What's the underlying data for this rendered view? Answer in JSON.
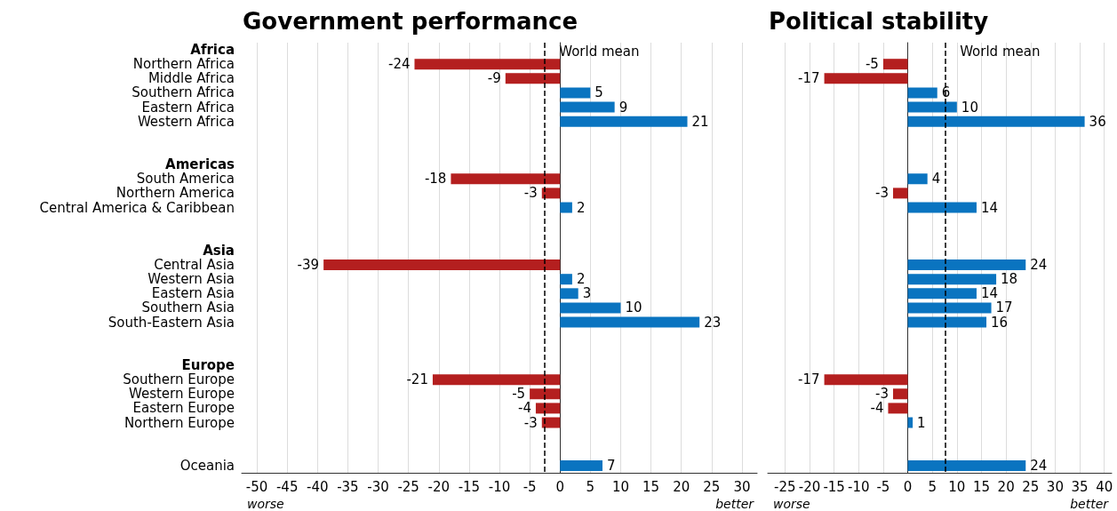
{
  "chart_data": [
    {
      "type": "bar",
      "orientation": "horizontal",
      "title": "Government performance",
      "categories": [
        "Africa",
        "Northern Africa",
        "Middle Africa",
        "Southern Africa",
        "Eastern Africa",
        "Western Africa",
        null,
        null,
        "Americas",
        "South America",
        "Northern America",
        "Central America & Caribbean",
        null,
        null,
        "Asia",
        "Central Asia",
        "Western Asia",
        "Eastern Asia",
        "Southern Asia",
        "South-Eastern Asia",
        null,
        null,
        "Europe",
        "Southern Europe",
        "Western Europe",
        "Eastern Europe",
        "Northern Europe",
        null,
        null,
        "Oceania"
      ],
      "values": [
        null,
        -24,
        -9,
        5,
        9,
        21,
        null,
        null,
        null,
        -18,
        -3,
        2,
        null,
        null,
        null,
        -39,
        2,
        3,
        10,
        23,
        null,
        null,
        null,
        -21,
        -5,
        -4,
        -3,
        null,
        null,
        7
      ],
      "colors": [
        null,
        "#b41f1f",
        "#b41f1f",
        "#0a74c0",
        "#0a74c0",
        "#0a74c0",
        null,
        null,
        null,
        "#b41f1f",
        "#b41f1f",
        "#0a74c0",
        null,
        null,
        null,
        "#b41f1f",
        "#0a74c0",
        "#0a74c0",
        "#0a74c0",
        "#0a74c0",
        null,
        null,
        null,
        "#b41f1f",
        "#b41f1f",
        "#b41f1f",
        "#b41f1f",
        null,
        null,
        "#0a74c0"
      ],
      "data_labels": true,
      "xlim": [
        -52.5,
        32.5
      ],
      "xticks": [
        -50,
        -45,
        -40,
        -35,
        -30,
        -25,
        -20,
        -15,
        -10,
        -5,
        0,
        5,
        10,
        15,
        20,
        25,
        30
      ],
      "grid": "x",
      "ref_lines": [
        {
          "axis": "x",
          "value": -2.5,
          "label": "World mean",
          "line_style": "dashed",
          "color": "#000000"
        }
      ],
      "annotations": [
        "worse",
        "better"
      ]
    },
    {
      "type": "bar",
      "orientation": "horizontal",
      "title": "Political stability",
      "categories": [
        null,
        null,
        null,
        null,
        null,
        null,
        null,
        null,
        null,
        null,
        null,
        null,
        null,
        null,
        null,
        null,
        null,
        null,
        null,
        null,
        null,
        null,
        null,
        null,
        null,
        null,
        null,
        null,
        null,
        null
      ],
      "values": [
        null,
        -5,
        -17,
        6,
        10,
        36,
        null,
        null,
        null,
        4,
        -3,
        14,
        null,
        null,
        null,
        24,
        18,
        14,
        17,
        16,
        null,
        null,
        null,
        -17,
        -3,
        -4,
        1,
        null,
        null,
        24
      ],
      "colors": [
        null,
        "#b41f1f",
        "#b41f1f",
        "#0a74c0",
        "#0a74c0",
        "#0a74c0",
        null,
        null,
        null,
        "#0a74c0",
        "#b41f1f",
        "#0a74c0",
        null,
        null,
        null,
        "#0a74c0",
        "#0a74c0",
        "#0a74c0",
        "#0a74c0",
        "#0a74c0",
        null,
        null,
        null,
        "#b41f1f",
        "#b41f1f",
        "#b41f1f",
        "#0a74c0",
        null,
        null,
        "#0a74c0"
      ],
      "data_labels": true,
      "tick_labels": "x",
      "xlim": [
        -28.5,
        41.5
      ],
      "xticks": [
        -25,
        -20,
        -15,
        -10,
        -5,
        0,
        5,
        10,
        15,
        20,
        25,
        30,
        35,
        40
      ],
      "grid": "x",
      "ref_lines": [
        {
          "axis": "x",
          "value": 7.7,
          "label": "World mean",
          "line_style": "dashed",
          "color": "#000000"
        }
      ],
      "annotations": [
        "worse",
        "better"
      ]
    }
  ]
}
